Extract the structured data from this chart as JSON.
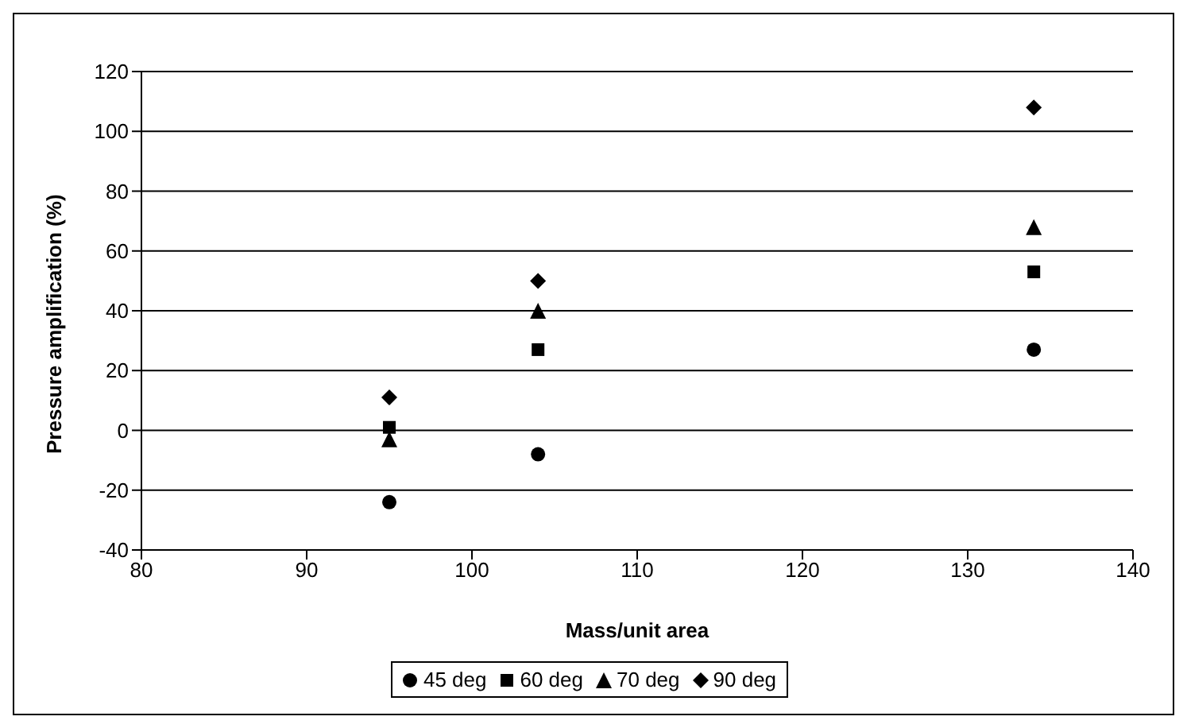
{
  "chart_data": {
    "type": "scatter",
    "xlabel": "Mass/unit area",
    "ylabel": "Pressure amplification (%)",
    "x": [
      95,
      104,
      134
    ],
    "series": [
      {
        "name": "45 deg",
        "color": "#000000",
        "marker": "circle",
        "values": [
          -24,
          -8,
          27
        ]
      },
      {
        "name": "60 deg",
        "color": "#000000",
        "marker": "square",
        "values": [
          1,
          27,
          53
        ]
      },
      {
        "name": "70 deg",
        "color": "#000000",
        "marker": "triangle",
        "values": [
          -3,
          40,
          68
        ]
      },
      {
        "name": "90 deg",
        "color": "#000000",
        "marker": "diamond",
        "values": [
          11,
          50,
          108
        ]
      }
    ],
    "xlim": [
      80,
      140
    ],
    "xticks": [
      80,
      90,
      100,
      110,
      120,
      130,
      140
    ],
    "ylim": [
      -40,
      120
    ],
    "yticks": [
      -40,
      -20,
      0,
      20,
      40,
      60,
      80,
      100,
      120
    ],
    "grid": "y",
    "legend": "bottom"
  }
}
